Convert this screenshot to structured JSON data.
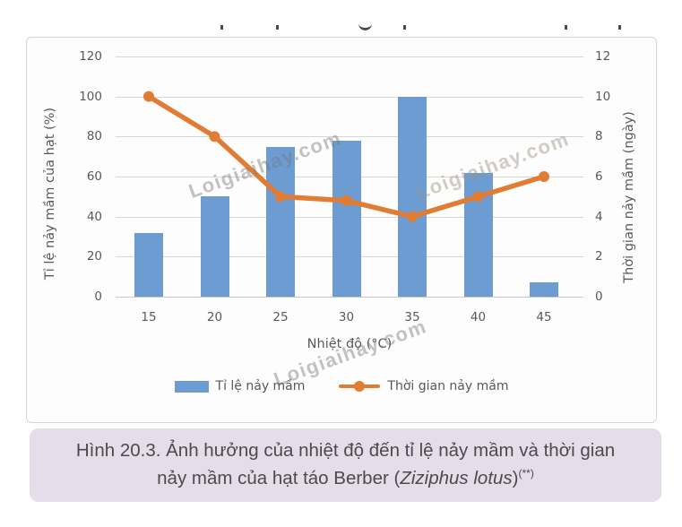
{
  "chart_data": {
    "type": "bar",
    "subtype": "combo-bar-line",
    "categories": [
      "15",
      "20",
      "25",
      "30",
      "35",
      "40",
      "45"
    ],
    "series": [
      {
        "name": "Tỉ lệ nảy mầm",
        "type": "bar",
        "axis": "left",
        "color": "#6d9cd3",
        "values": [
          32,
          50,
          75,
          78,
          100,
          62,
          7
        ]
      },
      {
        "name": "Thời gian nảy mầm",
        "type": "line",
        "axis": "right",
        "color": "#e07c33",
        "values": [
          10,
          8,
          5,
          4.8,
          4,
          5,
          6
        ]
      }
    ],
    "title": "",
    "xlabel": "Nhiệt độ (°C)",
    "ylabel_left": "Tỉ lệ nảy mầm của hạt (%)",
    "ylabel_right": "Thời gian nảy mầm (ngày)",
    "left_axis": {
      "min": 0,
      "max": 120,
      "ticks": [
        0,
        20,
        40,
        60,
        80,
        100,
        120
      ]
    },
    "right_axis": {
      "min": 0,
      "max": 12,
      "ticks": [
        0,
        2,
        4,
        6,
        8,
        10,
        12
      ]
    },
    "grid": true,
    "legend_position": "bottom"
  },
  "watermark": {
    "text": "Loigiaihay.com"
  },
  "caption": {
    "line1": "Hình 20.3. Ảnh hưởng của nhiệt độ đến tỉ lệ nảy mầm và thời gian",
    "line2_prefix": "nảy mầm của hạt táo Berber (",
    "line2_species": "Ziziphus lotus",
    "line2_close": ")",
    "line2_note": "(**)"
  },
  "colors": {
    "bar": "#6d9cd3",
    "line": "#e07c33",
    "caption_bg": "#e6dcea",
    "axis_text": "#595959",
    "grid": "#d6d6d6"
  }
}
